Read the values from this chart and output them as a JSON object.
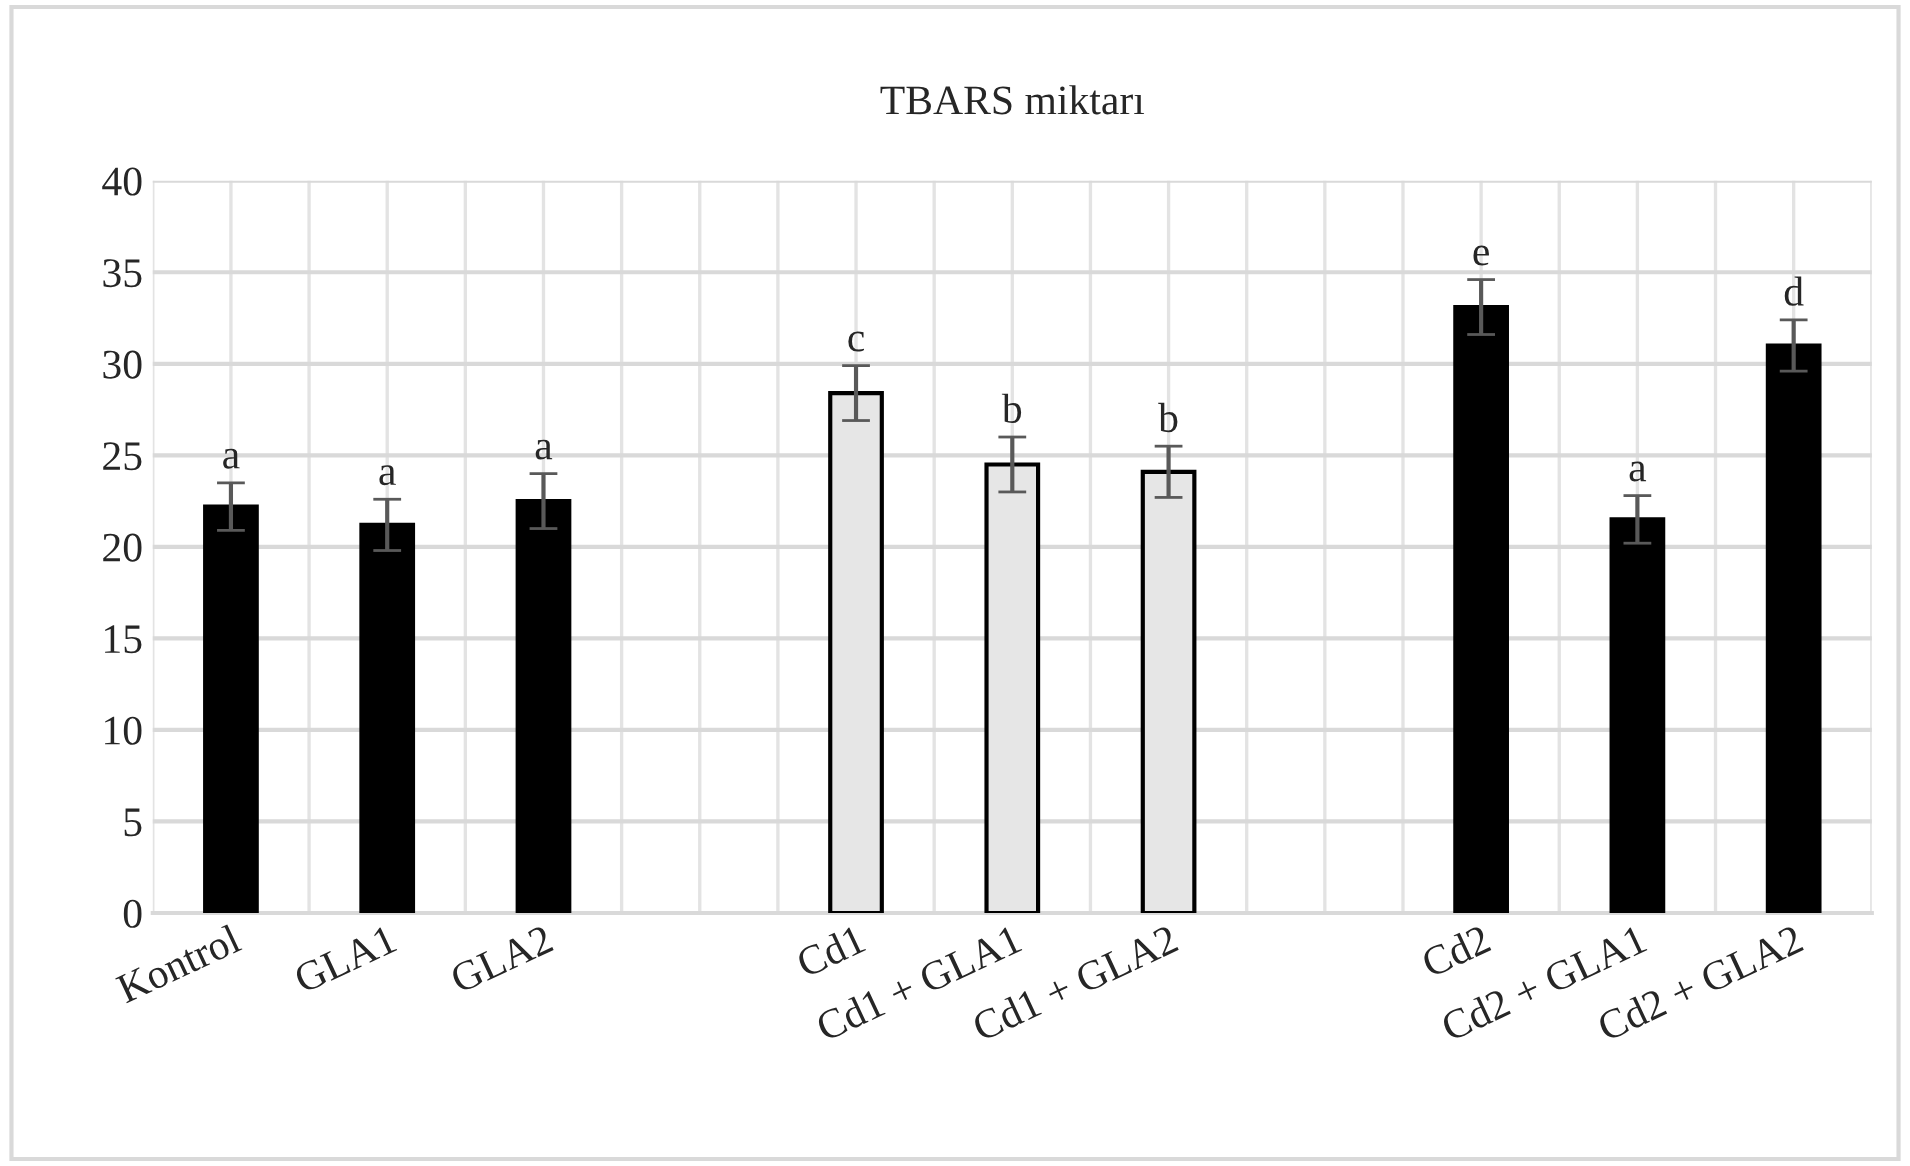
{
  "chart_data": {
    "type": "bar",
    "title": "TBARS miktarı",
    "categories": [
      "Kontrol",
      "GLA1",
      "GLA2",
      null,
      "Cd1",
      "Cd1 + GLA1",
      "Cd1 + GLA2",
      null,
      "Cd2",
      "Cd2 + GLA1",
      "Cd2 + GLA2"
    ],
    "values": [
      22.2,
      21.2,
      22.5,
      null,
      28.4,
      24.5,
      24.1,
      null,
      33.1,
      21.5,
      31.0
    ],
    "errors": [
      1.3,
      1.4,
      1.5,
      null,
      1.5,
      1.5,
      1.4,
      null,
      1.5,
      1.3,
      1.4
    ],
    "colors": [
      "#000000",
      "#000000",
      "#000000",
      null,
      "#e6e6e6",
      "#e6e6e6",
      "#e6e6e6",
      null,
      "#000000",
      "#000000",
      "#000000"
    ],
    "annotations": [
      {
        "text": "a",
        "x": "Kontrol",
        "y": 23.5
      },
      {
        "text": "a",
        "x": "GLA1",
        "y": 22.6
      },
      {
        "text": "a",
        "x": "GLA2",
        "y": 24.0
      },
      {
        "text": "c",
        "x": "Cd1",
        "y": 29.9
      },
      {
        "text": "b",
        "x": "Cd1 + GLA1",
        "y": 26.0
      },
      {
        "text": "b",
        "x": "Cd1 + GLA2",
        "y": 25.5
      },
      {
        "text": "e",
        "x": "Cd2",
        "y": 34.6
      },
      {
        "text": "a",
        "x": "Cd2 + GLA1",
        "y": 22.8
      },
      {
        "text": "d",
        "x": "Cd2 + GLA2",
        "y": 32.4
      }
    ],
    "ylim": [
      0,
      40
    ],
    "yticks": [
      0,
      5,
      10,
      15,
      20,
      25,
      30,
      35,
      40
    ],
    "grid": true
  }
}
